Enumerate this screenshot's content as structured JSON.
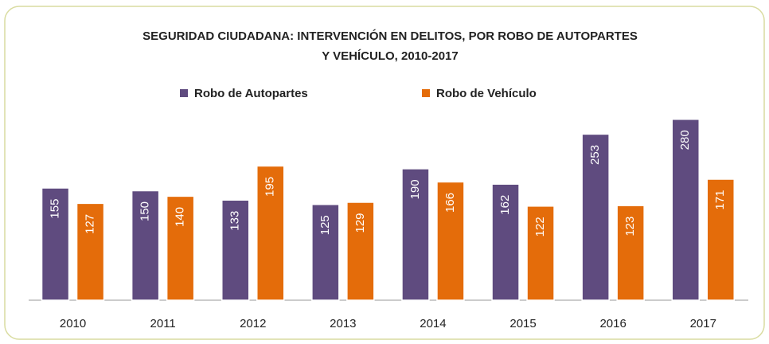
{
  "chart_data": {
    "type": "bar",
    "title": "SEGURIDAD CIUDADANA: INTERVENCIÓN EN DELITOS, POR ROBO DE AUTOPARTES",
    "subtitle": "Y VEHÍCULO, 2010-2017",
    "categories": [
      "2010",
      "2011",
      "2012",
      "2013",
      "2014",
      "2015",
      "2016",
      "2017"
    ],
    "series": [
      {
        "name": "Robo de Autopartes",
        "color": "#5f4b7f",
        "values": [
          155,
          150,
          133,
          125,
          190,
          162,
          253,
          280
        ]
      },
      {
        "name": "Robo de Vehículo",
        "color": "#e46c0a",
        "values": [
          127,
          140,
          195,
          129,
          166,
          122,
          123,
          171
        ]
      }
    ]
  }
}
